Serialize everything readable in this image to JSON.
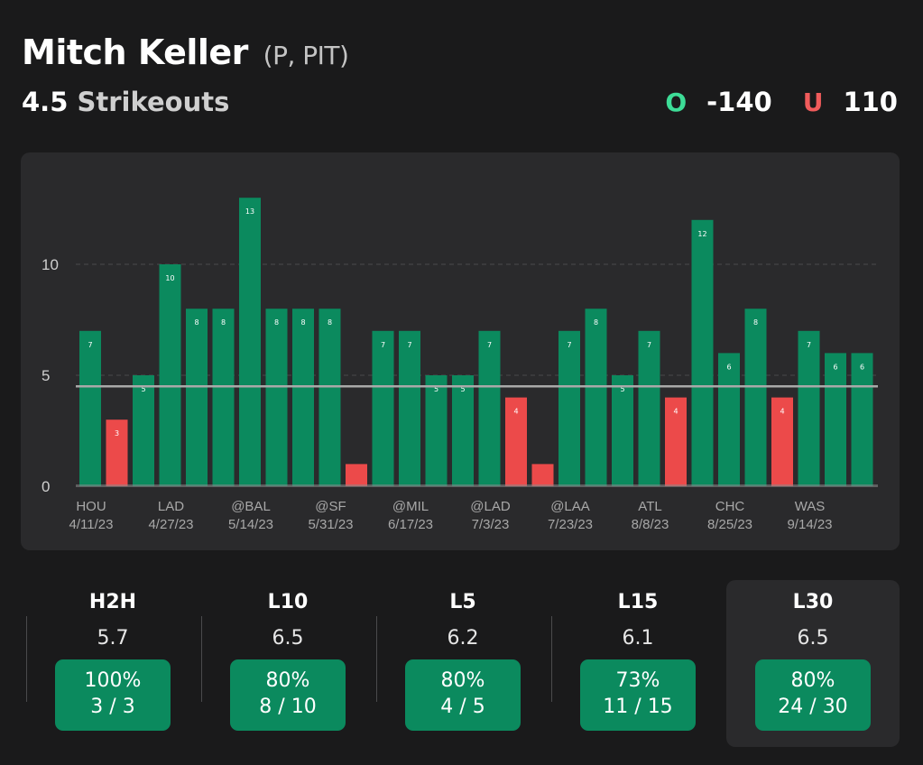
{
  "header": {
    "player": "Mitch Keller",
    "meta": "(P, PIT)",
    "line_value": "4.5",
    "stat": "Strikeouts"
  },
  "odds": {
    "over": {
      "letter": "O",
      "price": "-140"
    },
    "under": {
      "letter": "U",
      "price": "110"
    }
  },
  "colors": {
    "hit": "#0b8a5e",
    "miss": "#ec4a4a",
    "over": "#3ddc97",
    "under": "#f05b5b"
  },
  "chart_data": {
    "type": "bar",
    "title": "",
    "ylim": [
      0,
      14
    ],
    "yticks": [
      0,
      5,
      10
    ],
    "threshold": 4.5,
    "values": [
      7,
      3,
      5,
      10,
      8,
      8,
      13,
      8,
      8,
      8,
      1,
      7,
      7,
      5,
      5,
      7,
      4,
      1,
      7,
      8,
      5,
      7,
      4,
      12,
      6,
      8,
      4,
      7,
      6,
      6
    ],
    "labeled_games": [
      {
        "index": 0,
        "opp": "HOU",
        "date": "4/11/23"
      },
      {
        "index": 3,
        "opp": "LAD",
        "date": "4/27/23"
      },
      {
        "index": 6,
        "opp": "@BAL",
        "date": "5/14/23"
      },
      {
        "index": 9,
        "opp": "@SF",
        "date": "5/31/23"
      },
      {
        "index": 12,
        "opp": "@MIL",
        "date": "6/17/23"
      },
      {
        "index": 15,
        "opp": "@LAD",
        "date": "7/3/23"
      },
      {
        "index": 18,
        "opp": "@LAA",
        "date": "7/23/23"
      },
      {
        "index": 21,
        "opp": "ATL",
        "date": "8/8/23"
      },
      {
        "index": 24,
        "opp": "CHC",
        "date": "8/25/23"
      },
      {
        "index": 27,
        "opp": "WAS",
        "date": "9/14/23"
      }
    ]
  },
  "summary": [
    {
      "label": "H2H",
      "avg": "5.7",
      "pct": "100%",
      "frac": "3 / 3",
      "selected": false
    },
    {
      "label": "L10",
      "avg": "6.5",
      "pct": "80%",
      "frac": "8 / 10",
      "selected": false
    },
    {
      "label": "L5",
      "avg": "6.2",
      "pct": "80%",
      "frac": "4 / 5",
      "selected": false
    },
    {
      "label": "L15",
      "avg": "6.1",
      "pct": "73%",
      "frac": "11 / 15",
      "selected": false
    },
    {
      "label": "L30",
      "avg": "6.5",
      "pct": "80%",
      "frac": "24 / 30",
      "selected": true
    }
  ]
}
